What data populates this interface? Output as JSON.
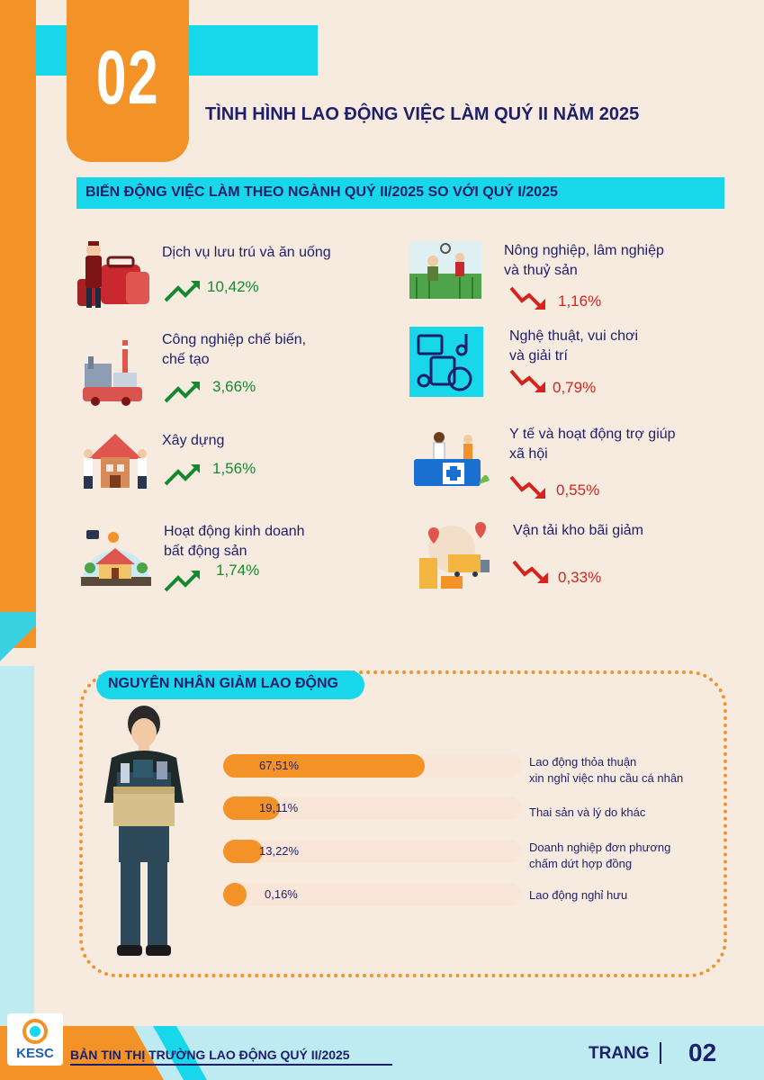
{
  "header": {
    "number": "02",
    "title": "TÌNH HÌNH LAO ĐỘNG VIỆC LÀM QUÝ II NĂM 2025",
    "subtitle": "BIẾN ĐỘNG VIỆC LÀM THEO NGÀNH QUÝ II/2025 SO VỚI QUÝ I/2025"
  },
  "sectors_up": [
    {
      "label": "Dịch vụ lưu trú và ăn uống",
      "value": "10,42%",
      "icon": "hotel-staff-luggage-icon"
    },
    {
      "label_line1": "Công nghiệp chế biến,",
      "label_line2": "chế tạo",
      "value": "3,66%",
      "icon": "factory-icon"
    },
    {
      "label": "Xây dựng",
      "value": "1,56%",
      "icon": "construction-workers-icon"
    },
    {
      "label_line1": "Hoạt động kinh doanh",
      "label_line2": "bất động sản",
      "value": "1,74%",
      "icon": "real-estate-house-icon"
    }
  ],
  "sectors_down": [
    {
      "label_line1": "Nông nghiệp, lâm nghiệp",
      "label_line2": "và thuỷ sản",
      "value": "1,16%",
      "icon": "farmers-field-icon"
    },
    {
      "label_line1": "Nghệ thuật, vui chơi",
      "label_line2": "và giải trí",
      "value": "0,79%",
      "icon": "music-arts-icon"
    },
    {
      "label_line1": "Y tế và hoạt động trợ giúp",
      "label_line2": "xã hội",
      "value": "0,55%",
      "icon": "medical-desk-icon"
    },
    {
      "label": "Vận tải kho bãi giảm",
      "value": "0,33%",
      "icon": "transport-warehouse-icon"
    }
  ],
  "reasons": {
    "title": "NGUYÊN NHÂN GIẢM LAO ĐỘNG",
    "items": [
      {
        "value": "67,51%",
        "pct": 67.51,
        "label_line1": "Lao động thỏa thuận",
        "label_line2": "xin nghỉ việc nhu cầu cá nhân"
      },
      {
        "value": "19,11%",
        "pct": 19.11,
        "label_line1": "Thai sản và lý do khác",
        "label_line2": ""
      },
      {
        "value": "13,22%",
        "pct": 13.22,
        "label_line1": "Doanh nghiệp đơn phương",
        "label_line2": "chấm dứt hợp đồng"
      },
      {
        "value": "0,16%",
        "pct": 0.16,
        "label_line1": "Lao động nghỉ hưu",
        "label_line2": ""
      }
    ]
  },
  "footer": {
    "logo": "KESC",
    "title": "BẢN TIN THỊ TRƯỜNG LAO ĐỘNG QUÝ II/2025",
    "page_label": "TRANG",
    "page_number": "02"
  },
  "colors": {
    "orange": "#f39226",
    "cyan": "#18d7ea",
    "navy": "#1e1f6b",
    "up_green": "#138a2f",
    "down_red": "#d6231d",
    "background": "#f7ebe0"
  }
}
